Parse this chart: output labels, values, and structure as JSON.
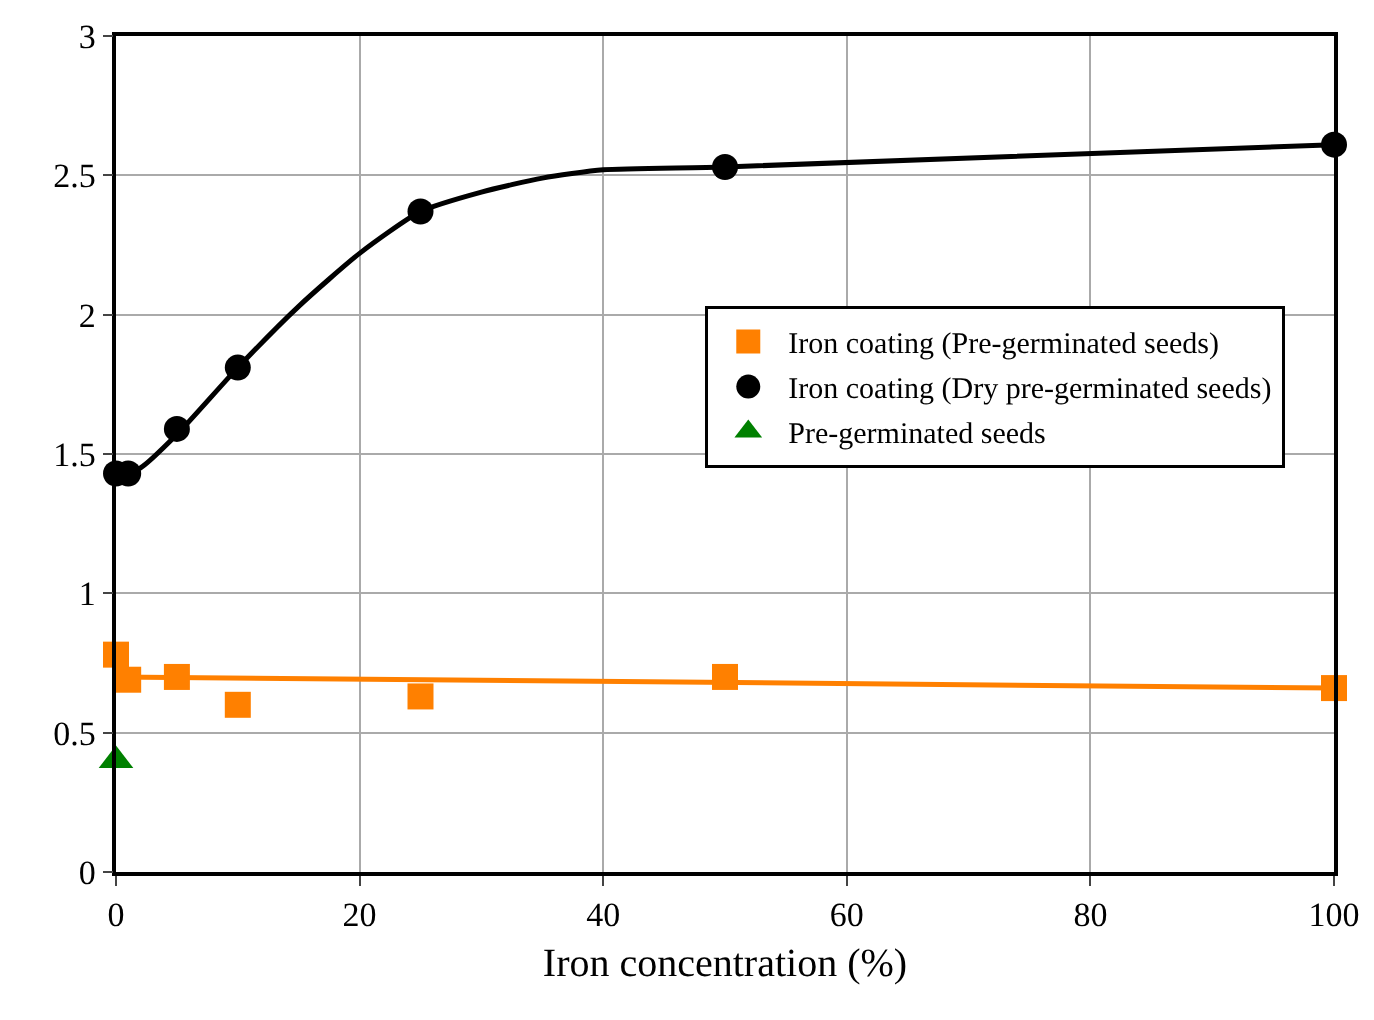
{
  "chart_data": {
    "type": "scatter",
    "xlabel": "Iron concentration (%)",
    "xlim": [
      0,
      100
    ],
    "xticks": [
      0,
      20,
      40,
      60,
      80,
      100
    ],
    "ylim": [
      0,
      3
    ],
    "yticks": [
      0,
      0.5,
      1,
      1.5,
      2,
      2.5,
      3
    ],
    "grid": true,
    "legend": "right",
    "series": [
      {
        "name": "Iron coating (Pre-germinated seeds)",
        "color": "#ff8000",
        "marker": "square",
        "x": [
          0,
          1,
          5,
          10,
          25,
          50,
          100
        ],
        "values": [
          0.78,
          0.69,
          0.7,
          0.6,
          0.63,
          0.7,
          0.66
        ]
      },
      {
        "name": "Iron coating (Dry pre-germinated seeds)",
        "color": "#000000",
        "marker": "circle",
        "x": [
          0,
          1,
          5,
          10,
          25,
          50,
          100
        ],
        "values": [
          1.43,
          1.43,
          1.59,
          1.81,
          2.37,
          2.53,
          2.61
        ]
      },
      {
        "name": "Pre-germinated seeds",
        "color": "#008000",
        "marker": "triangle",
        "x": [
          0
        ],
        "values": [
          0.4
        ]
      },
      {
        "type": "line",
        "color": "#ff8000",
        "marker": "none",
        "x": [
          0,
          100
        ],
        "values": [
          0.7,
          0.66
        ]
      },
      {
        "type": "line",
        "color": "#000000",
        "marker": "none",
        "x": [
          0,
          2,
          5,
          10,
          15,
          20,
          25,
          30,
          35,
          40,
          50,
          100
        ],
        "values": [
          1.43,
          1.45,
          1.57,
          1.81,
          2.03,
          2.22,
          2.37,
          2.44,
          2.49,
          2.52,
          2.53,
          2.61
        ]
      }
    ]
  }
}
